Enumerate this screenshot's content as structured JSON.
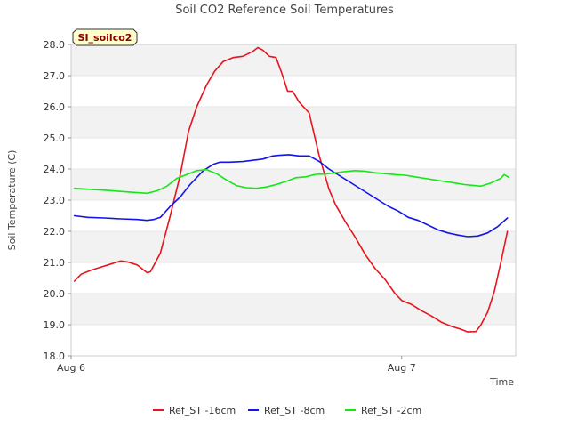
{
  "chart_data": {
    "type": "line",
    "title": "Soil CO2 Reference Soil Temperatures",
    "xlabel": "Time",
    "ylabel": "Soil Temperature (C)",
    "ylim": [
      18.0,
      28.0
    ],
    "yticks": [
      "18.0",
      "19.0",
      "20.0",
      "21.0",
      "22.0",
      "23.0",
      "24.0",
      "25.0",
      "26.0",
      "27.0",
      "28.0"
    ],
    "xlim": [
      0,
      1.345
    ],
    "xticks": [
      {
        "label": "Aug 6",
        "value": 0
      },
      {
        "label": "Aug 7",
        "value": 1
      }
    ],
    "grid": "horizontal bands",
    "legend_position": "bottom",
    "annotation": "SI_soilco2",
    "series": [
      {
        "name": "Ref_ST -16cm",
        "color": "#e8141e",
        "points": [
          [
            0.01,
            20.4
          ],
          [
            0.03,
            20.62
          ],
          [
            0.06,
            20.75
          ],
          [
            0.09,
            20.85
          ],
          [
            0.12,
            20.95
          ],
          [
            0.15,
            21.05
          ],
          [
            0.17,
            21.02
          ],
          [
            0.2,
            20.92
          ],
          [
            0.23,
            20.67
          ],
          [
            0.24,
            20.7
          ],
          [
            0.27,
            21.3
          ],
          [
            0.3,
            22.5
          ],
          [
            0.33,
            23.8
          ],
          [
            0.355,
            25.2
          ],
          [
            0.38,
            26.0
          ],
          [
            0.41,
            26.7
          ],
          [
            0.435,
            27.15
          ],
          [
            0.46,
            27.45
          ],
          [
            0.49,
            27.58
          ],
          [
            0.52,
            27.62
          ],
          [
            0.55,
            27.78
          ],
          [
            0.565,
            27.9
          ],
          [
            0.58,
            27.82
          ],
          [
            0.6,
            27.62
          ],
          [
            0.62,
            27.58
          ],
          [
            0.64,
            27.0
          ],
          [
            0.655,
            26.5
          ],
          [
            0.67,
            26.5
          ],
          [
            0.69,
            26.15
          ],
          [
            0.72,
            25.8
          ],
          [
            0.75,
            24.45
          ],
          [
            0.78,
            23.35
          ],
          [
            0.8,
            22.85
          ],
          [
            0.83,
            22.3
          ],
          [
            0.86,
            21.8
          ],
          [
            0.89,
            21.25
          ],
          [
            0.92,
            20.8
          ],
          [
            0.95,
            20.45
          ],
          [
            0.98,
            20.0
          ],
          [
            1.0,
            19.78
          ],
          [
            1.03,
            19.65
          ],
          [
            1.06,
            19.45
          ],
          [
            1.09,
            19.28
          ],
          [
            1.12,
            19.08
          ],
          [
            1.15,
            18.95
          ],
          [
            1.18,
            18.85
          ],
          [
            1.2,
            18.77
          ],
          [
            1.225,
            18.78
          ],
          [
            1.24,
            19.0
          ],
          [
            1.26,
            19.4
          ],
          [
            1.28,
            20.05
          ],
          [
            1.3,
            21.0
          ],
          [
            1.32,
            22.0
          ]
        ]
      },
      {
        "name": "Ref_ST -8cm",
        "color": "#1414e8",
        "points": [
          [
            0.01,
            22.5
          ],
          [
            0.05,
            22.45
          ],
          [
            0.1,
            22.43
          ],
          [
            0.15,
            22.4
          ],
          [
            0.2,
            22.38
          ],
          [
            0.23,
            22.35
          ],
          [
            0.25,
            22.38
          ],
          [
            0.27,
            22.45
          ],
          [
            0.3,
            22.8
          ],
          [
            0.33,
            23.1
          ],
          [
            0.36,
            23.5
          ],
          [
            0.4,
            23.95
          ],
          [
            0.43,
            24.15
          ],
          [
            0.45,
            24.22
          ],
          [
            0.48,
            24.22
          ],
          [
            0.52,
            24.24
          ],
          [
            0.55,
            24.28
          ],
          [
            0.58,
            24.32
          ],
          [
            0.61,
            24.42
          ],
          [
            0.63,
            24.44
          ],
          [
            0.66,
            24.46
          ],
          [
            0.69,
            24.42
          ],
          [
            0.72,
            24.42
          ],
          [
            0.75,
            24.25
          ],
          [
            0.78,
            24.0
          ],
          [
            0.81,
            23.8
          ],
          [
            0.84,
            23.6
          ],
          [
            0.87,
            23.4
          ],
          [
            0.9,
            23.2
          ],
          [
            0.93,
            23.0
          ],
          [
            0.96,
            22.8
          ],
          [
            0.99,
            22.65
          ],
          [
            1.02,
            22.45
          ],
          [
            1.05,
            22.35
          ],
          [
            1.08,
            22.2
          ],
          [
            1.11,
            22.05
          ],
          [
            1.14,
            21.95
          ],
          [
            1.17,
            21.88
          ],
          [
            1.2,
            21.83
          ],
          [
            1.23,
            21.85
          ],
          [
            1.26,
            21.95
          ],
          [
            1.29,
            22.15
          ],
          [
            1.32,
            22.43
          ]
        ]
      },
      {
        "name": "Ref_ST -2cm",
        "color": "#14e814",
        "points": [
          [
            0.01,
            23.38
          ],
          [
            0.05,
            23.35
          ],
          [
            0.1,
            23.32
          ],
          [
            0.15,
            23.28
          ],
          [
            0.2,
            23.24
          ],
          [
            0.23,
            23.22
          ],
          [
            0.26,
            23.3
          ],
          [
            0.29,
            23.45
          ],
          [
            0.32,
            23.7
          ],
          [
            0.35,
            23.82
          ],
          [
            0.38,
            23.95
          ],
          [
            0.41,
            23.98
          ],
          [
            0.44,
            23.85
          ],
          [
            0.47,
            23.65
          ],
          [
            0.5,
            23.47
          ],
          [
            0.53,
            23.4
          ],
          [
            0.56,
            23.38
          ],
          [
            0.59,
            23.42
          ],
          [
            0.62,
            23.5
          ],
          [
            0.65,
            23.6
          ],
          [
            0.68,
            23.72
          ],
          [
            0.71,
            23.75
          ],
          [
            0.74,
            23.83
          ],
          [
            0.77,
            23.84
          ],
          [
            0.8,
            23.88
          ],
          [
            0.83,
            23.92
          ],
          [
            0.86,
            23.95
          ],
          [
            0.89,
            23.93
          ],
          [
            0.92,
            23.88
          ],
          [
            0.95,
            23.85
          ],
          [
            0.98,
            23.82
          ],
          [
            1.01,
            23.8
          ],
          [
            1.04,
            23.75
          ],
          [
            1.07,
            23.7
          ],
          [
            1.1,
            23.65
          ],
          [
            1.13,
            23.6
          ],
          [
            1.16,
            23.55
          ],
          [
            1.19,
            23.5
          ],
          [
            1.22,
            23.47
          ],
          [
            1.24,
            23.45
          ],
          [
            1.27,
            23.55
          ],
          [
            1.3,
            23.7
          ],
          [
            1.31,
            23.82
          ],
          [
            1.325,
            23.73
          ]
        ]
      }
    ]
  }
}
